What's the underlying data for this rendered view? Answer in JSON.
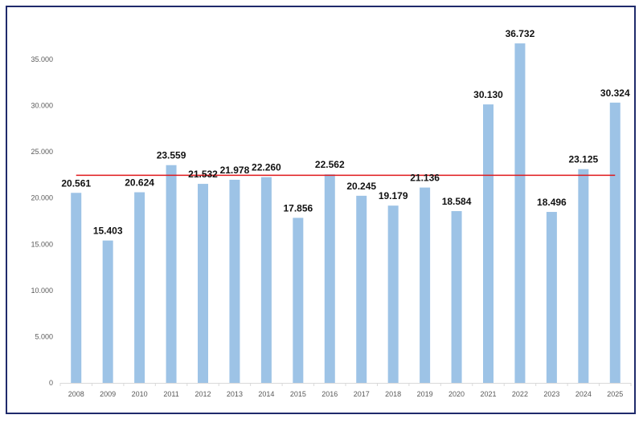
{
  "chart_data": {
    "type": "bar",
    "title": "",
    "xlabel": "",
    "ylabel": "",
    "categories": [
      "2008",
      "2009",
      "2010",
      "2011",
      "2012",
      "2013",
      "2014",
      "2015",
      "2016",
      "2017",
      "2018",
      "2019",
      "2020",
      "2021",
      "2022",
      "2023",
      "2024",
      "2025"
    ],
    "values": [
      20561,
      15403,
      20624,
      23559,
      21532,
      21978,
      22260,
      17856,
      22562,
      20245,
      19179,
      21136,
      18584,
      30130,
      36732,
      18496,
      23125,
      30324
    ],
    "data_labels": [
      "20.561",
      "15.403",
      "20.624",
      "23.559",
      "21.532",
      "21.978",
      "22.260",
      "17.856",
      "22.562",
      "20.245",
      "19.179",
      "21.136",
      "18.584",
      "30.130",
      "36.732",
      "18.496",
      "23.125",
      "30.324"
    ],
    "yticks": [
      0,
      5000,
      10000,
      15000,
      20000,
      25000,
      30000,
      35000
    ],
    "ytick_labels": [
      "0",
      "5.000",
      "10.000",
      "15.000",
      "20.000",
      "25.000",
      "30.000",
      "35.000"
    ],
    "ylim": [
      0,
      35000
    ],
    "grid": false,
    "reference_line": {
      "type": "average",
      "value": 22460,
      "color": "#e0181b"
    },
    "bar_color": "#9dc3e6",
    "frame_color": "#1f2a6b"
  }
}
